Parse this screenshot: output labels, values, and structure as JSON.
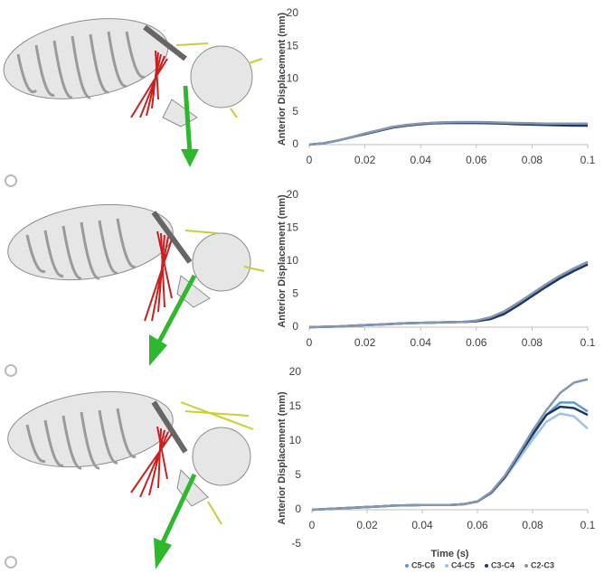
{
  "chart_data": [
    {
      "type": "line",
      "ylabel": "Anterior Displacement (mm)",
      "x": [
        0,
        0.005,
        0.01,
        0.015,
        0.02,
        0.025,
        0.03,
        0.035,
        0.04,
        0.045,
        0.05,
        0.055,
        0.06,
        0.065,
        0.07,
        0.075,
        0.08,
        0.085,
        0.09,
        0.095,
        0.1
      ],
      "series": [
        {
          "name": "C5-C6",
          "color": "#5b9bd5",
          "values": [
            0,
            0.2,
            0.6,
            1.1,
            1.7,
            2.2,
            2.7,
            3.0,
            3.2,
            3.35,
            3.4,
            3.4,
            3.4,
            3.35,
            3.3,
            3.25,
            3.2,
            3.15,
            3.1,
            3.1,
            3.1
          ]
        },
        {
          "name": "C4-C5",
          "color": "#9dc3e6",
          "values": [
            0,
            0.2,
            0.6,
            1.1,
            1.7,
            2.2,
            2.7,
            3.0,
            3.2,
            3.3,
            3.35,
            3.35,
            3.35,
            3.3,
            3.25,
            3.2,
            3.15,
            3.1,
            3.05,
            3.0,
            3.0
          ]
        },
        {
          "name": "C3-C4",
          "color": "#1f3864",
          "values": [
            0,
            0.2,
            0.6,
            1.1,
            1.6,
            2.1,
            2.6,
            2.9,
            3.1,
            3.25,
            3.3,
            3.3,
            3.3,
            3.25,
            3.2,
            3.1,
            3.05,
            3.0,
            2.95,
            2.9,
            2.9
          ]
        },
        {
          "name": "C2-C3",
          "color": "#8497b0",
          "values": [
            0,
            0.2,
            0.6,
            1.1,
            1.7,
            2.2,
            2.7,
            3.0,
            3.2,
            3.35,
            3.4,
            3.45,
            3.45,
            3.4,
            3.35,
            3.3,
            3.25,
            3.2,
            3.2,
            3.2,
            3.2
          ]
        }
      ],
      "xlim": [
        0,
        0.1
      ],
      "ylim": [
        0,
        20
      ],
      "xticks": [
        0,
        0.02,
        0.04,
        0.06,
        0.08,
        0.1
      ],
      "yticks": [
        0,
        5,
        10,
        15,
        20
      ]
    },
    {
      "type": "line",
      "ylabel": "Anterior Displacement (mm)",
      "x": [
        0,
        0.005,
        0.01,
        0.015,
        0.02,
        0.025,
        0.03,
        0.035,
        0.04,
        0.045,
        0.05,
        0.055,
        0.06,
        0.065,
        0.07,
        0.075,
        0.08,
        0.085,
        0.09,
        0.095,
        0.1
      ],
      "series": [
        {
          "name": "C5-C6",
          "color": "#5b9bd5",
          "values": [
            0,
            0.05,
            0.1,
            0.2,
            0.3,
            0.4,
            0.5,
            0.6,
            0.65,
            0.7,
            0.75,
            0.8,
            0.9,
            1.3,
            2.2,
            3.5,
            4.9,
            6.3,
            7.6,
            8.7,
            9.7
          ]
        },
        {
          "name": "C4-C5",
          "color": "#9dc3e6",
          "values": [
            0,
            0.05,
            0.1,
            0.2,
            0.3,
            0.4,
            0.5,
            0.6,
            0.65,
            0.7,
            0.75,
            0.8,
            0.9,
            1.4,
            2.3,
            3.6,
            5.0,
            6.4,
            7.7,
            8.8,
            9.8
          ]
        },
        {
          "name": "C3-C4",
          "color": "#1f3864",
          "values": [
            0,
            0.05,
            0.1,
            0.2,
            0.3,
            0.4,
            0.5,
            0.6,
            0.65,
            0.7,
            0.75,
            0.8,
            0.9,
            1.2,
            2.0,
            3.3,
            4.7,
            6.1,
            7.4,
            8.5,
            9.5
          ]
        },
        {
          "name": "C2-C3",
          "color": "#8497b0",
          "values": [
            0,
            0.05,
            0.1,
            0.2,
            0.3,
            0.4,
            0.5,
            0.6,
            0.65,
            0.7,
            0.75,
            0.8,
            1.0,
            1.5,
            2.4,
            3.7,
            5.1,
            6.5,
            7.8,
            8.9,
            9.9
          ]
        }
      ],
      "xlim": [
        0,
        0.1
      ],
      "ylim": [
        0,
        20
      ],
      "xticks": [
        0,
        0.02,
        0.04,
        0.06,
        0.08,
        0.1
      ],
      "yticks": [
        0,
        5,
        10,
        15,
        20
      ]
    },
    {
      "type": "line",
      "ylabel": "Anterior Displacement (mm)",
      "xlabel": "Time (s)",
      "legend": "bottom",
      "x": [
        0,
        0.005,
        0.01,
        0.015,
        0.02,
        0.025,
        0.03,
        0.035,
        0.04,
        0.045,
        0.05,
        0.055,
        0.06,
        0.065,
        0.07,
        0.075,
        0.08,
        0.085,
        0.09,
        0.095,
        0.1
      ],
      "series": [
        {
          "name": "C5-C6",
          "color": "#5b9bd5",
          "values": [
            0,
            0.1,
            0.2,
            0.3,
            0.4,
            0.5,
            0.6,
            0.65,
            0.7,
            0.7,
            0.7,
            0.8,
            1.2,
            2.5,
            4.8,
            7.8,
            10.8,
            13.8,
            15.6,
            15.6,
            14.3
          ]
        },
        {
          "name": "C4-C5",
          "color": "#9dc3e6",
          "values": [
            0,
            0.1,
            0.2,
            0.3,
            0.4,
            0.5,
            0.6,
            0.65,
            0.7,
            0.7,
            0.7,
            0.8,
            1.2,
            2.4,
            4.6,
            7.4,
            10.2,
            12.8,
            14.0,
            13.6,
            11.8
          ]
        },
        {
          "name": "C3-C4",
          "color": "#1f3864",
          "values": [
            0,
            0.1,
            0.2,
            0.3,
            0.4,
            0.5,
            0.6,
            0.65,
            0.7,
            0.7,
            0.7,
            0.8,
            1.2,
            2.5,
            4.8,
            7.9,
            11.0,
            13.8,
            15.0,
            14.8,
            13.8
          ]
        },
        {
          "name": "C2-C3",
          "color": "#8497b0",
          "values": [
            0,
            0.1,
            0.2,
            0.3,
            0.4,
            0.5,
            0.6,
            0.65,
            0.7,
            0.7,
            0.7,
            0.8,
            1.2,
            2.6,
            5.0,
            8.2,
            11.5,
            14.5,
            17.0,
            18.5,
            19.0
          ]
        }
      ],
      "xlim": [
        0,
        0.1
      ],
      "ylim": [
        -5,
        20
      ],
      "xticks": [
        0,
        0.02,
        0.04,
        0.06,
        0.08,
        0.1
      ],
      "yticks": [
        -5,
        0,
        5,
        10,
        15,
        20
      ]
    }
  ]
}
